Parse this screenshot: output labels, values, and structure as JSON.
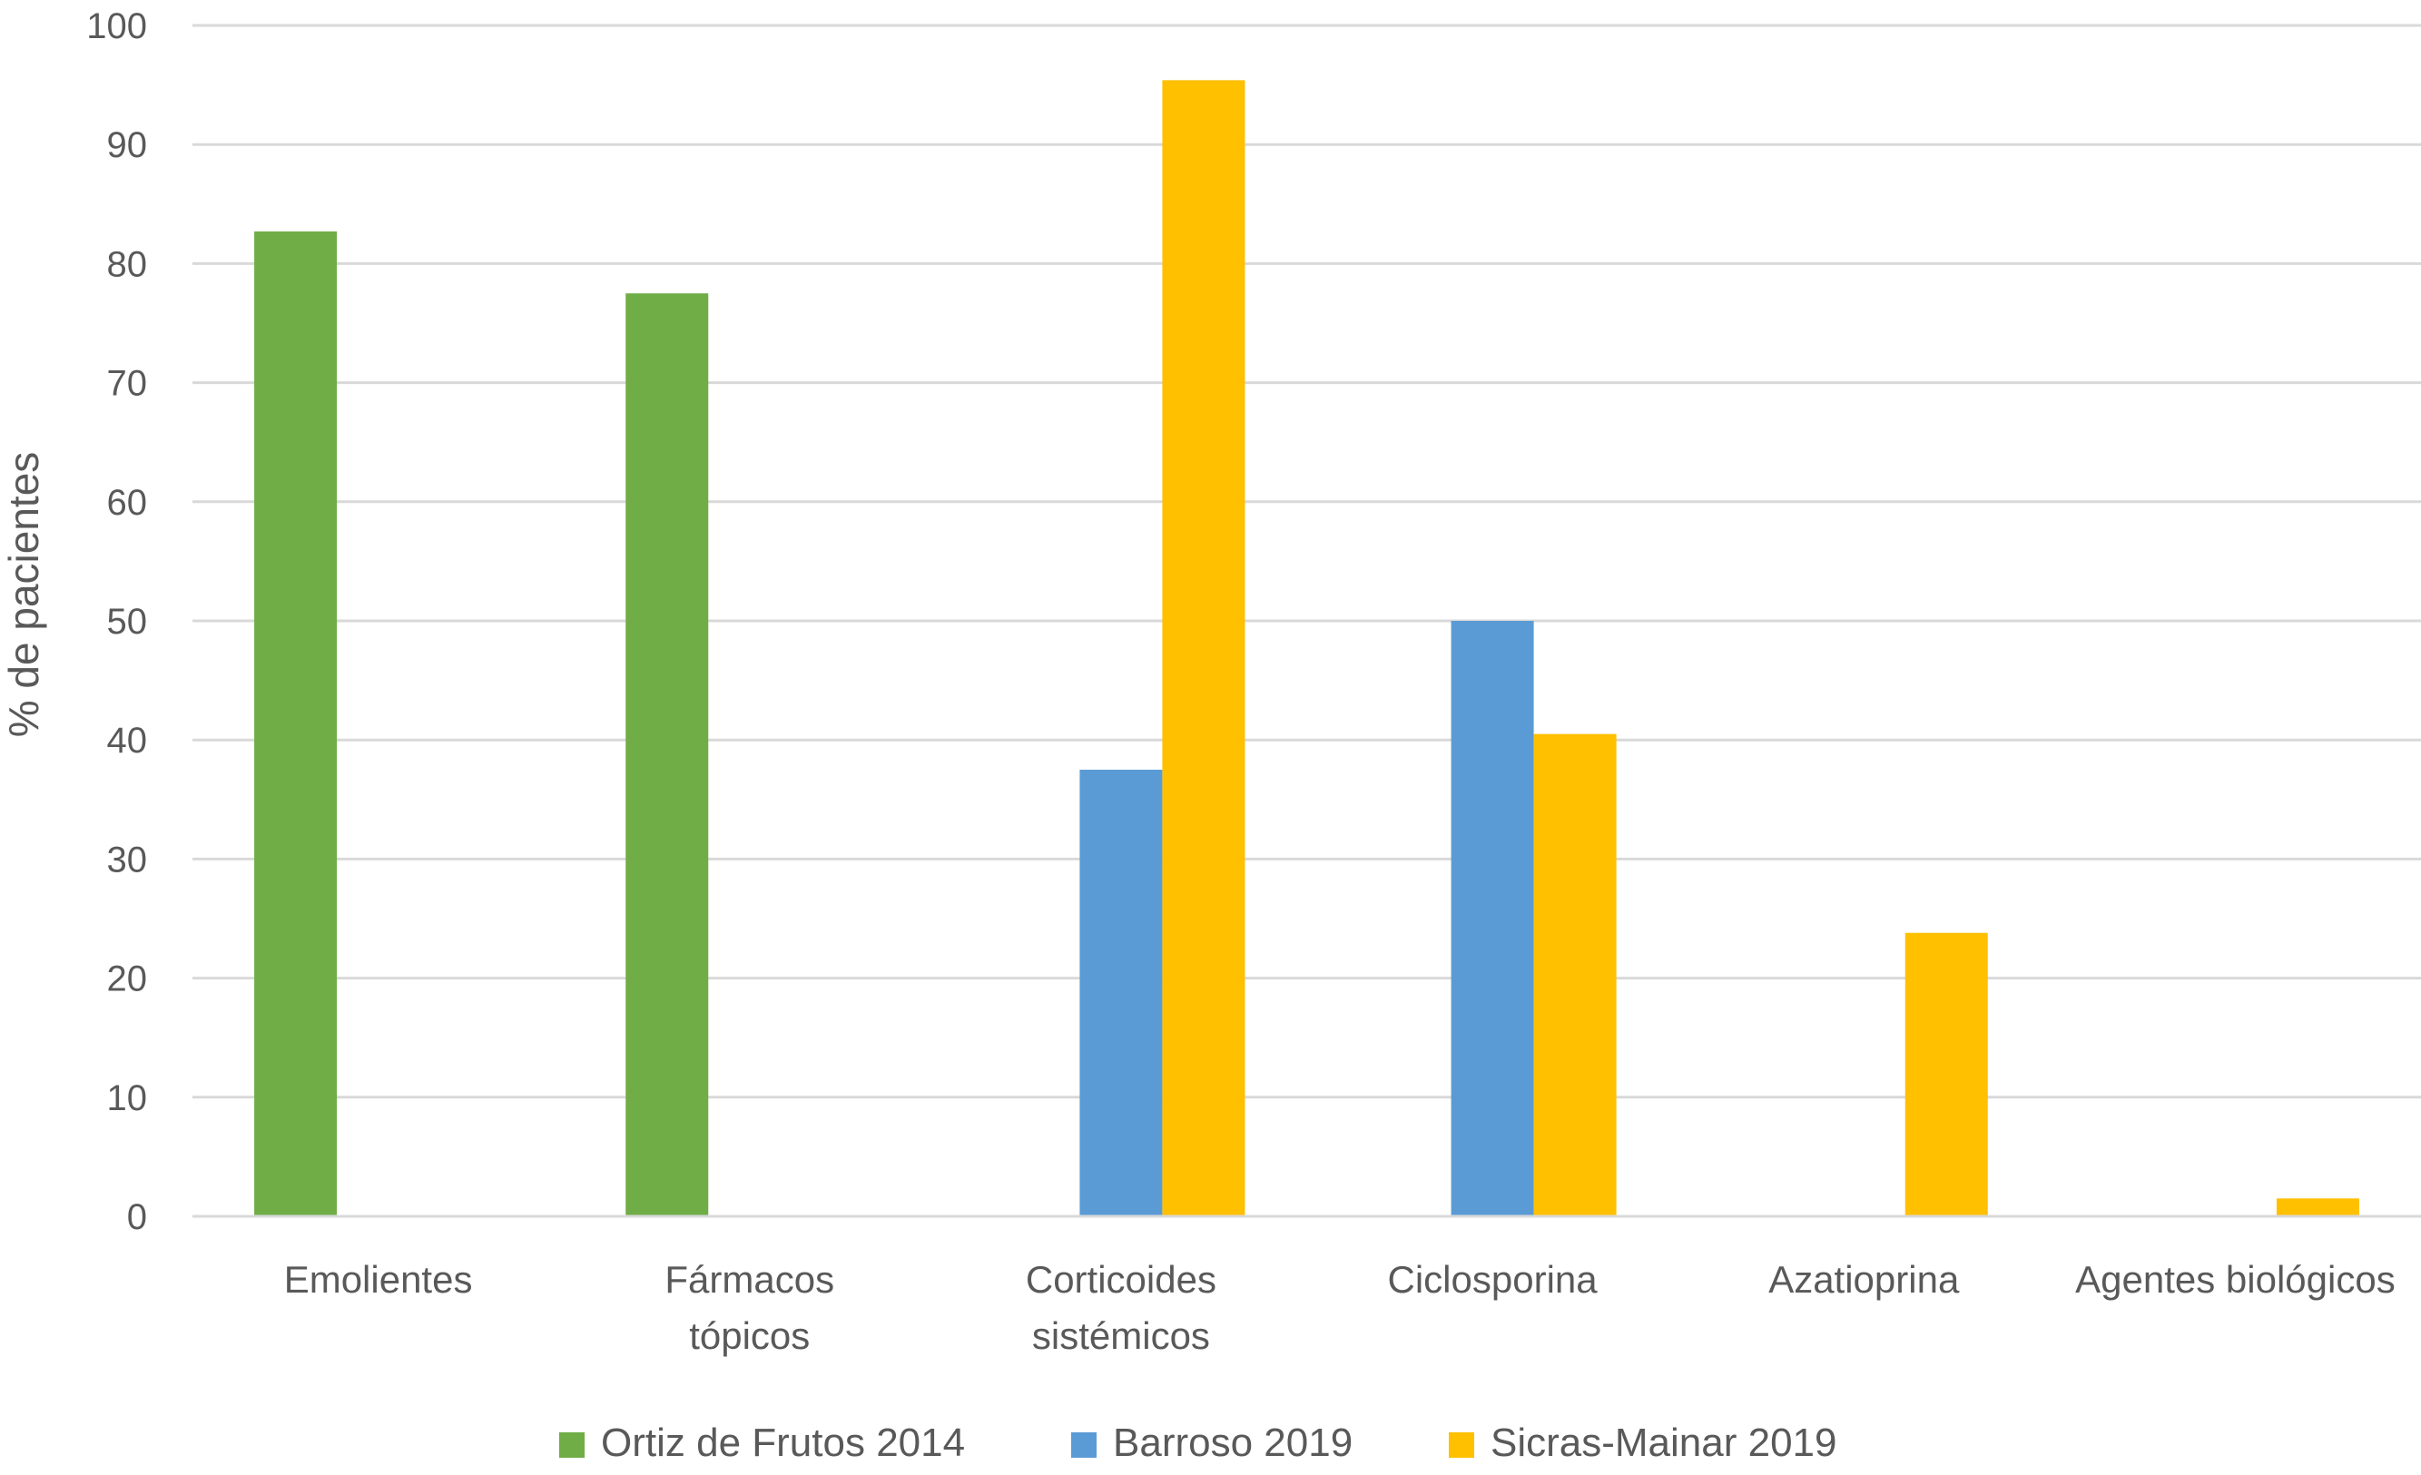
{
  "chart_data": {
    "type": "bar",
    "ylabel": "% de pacientes",
    "xlabel": "",
    "ylim": [
      0,
      100
    ],
    "yticks": [
      0,
      10,
      20,
      30,
      40,
      50,
      60,
      70,
      80,
      90,
      100
    ],
    "grid": true,
    "legend_position": "bottom",
    "categories": [
      [
        "Emolientes"
      ],
      [
        "Fármacos",
        "tópicos"
      ],
      [
        "Corticoides",
        "sistémicos"
      ],
      [
        "Ciclosporina"
      ],
      [
        "Azatioprina"
      ],
      [
        "Agentes biológicos"
      ]
    ],
    "series": [
      {
        "name": "Ortiz de Frutos 2014",
        "color": "#70ad47",
        "values": [
          82.7,
          77.5,
          null,
          null,
          null,
          null
        ]
      },
      {
        "name": "Barroso 2019",
        "color": "#5b9bd5",
        "values": [
          null,
          null,
          37.5,
          50.0,
          null,
          null
        ]
      },
      {
        "name": "Sicras-Mainar 2019",
        "color": "#ffc000",
        "values": [
          null,
          null,
          95.4,
          40.5,
          23.8,
          1.5
        ]
      }
    ]
  }
}
